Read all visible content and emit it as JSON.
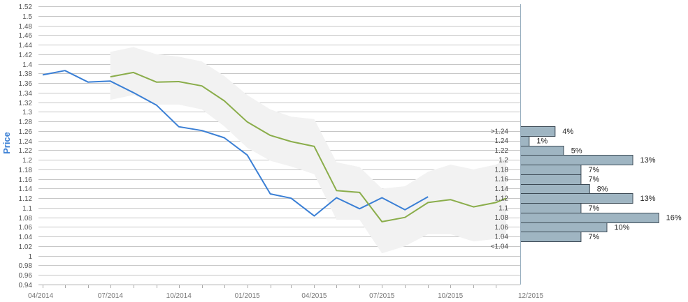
{
  "chart_data": {
    "type": "line",
    "title": "",
    "ylabel": "Price",
    "ylim": [
      0.94,
      1.52
    ],
    "yticks": [
      "1.52",
      "1.5",
      "1.48",
      "1.46",
      "1.44",
      "1.42",
      "1.4",
      "1.38",
      "1.36",
      "1.34",
      "1.32",
      "1.3",
      "1.28",
      "1.26",
      "1.24",
      "1.22",
      "1.2",
      "1.18",
      "1.16",
      "1.14",
      "1.12",
      "1.1",
      "1.08",
      "1.06",
      "1.04",
      "1.02",
      "1",
      "0.98",
      "0.96",
      "0.94"
    ],
    "xticks": [
      "04/2014",
      "07/2014",
      "10/2014",
      "01/2015",
      "04/2015",
      "07/2015",
      "10/2015",
      "12/2015"
    ],
    "grid": true,
    "series": [
      {
        "color": "#3a7fd5",
        "points": [
          [
            "2014-04-01",
            1.377
          ],
          [
            "2014-05-01",
            1.386
          ],
          [
            "2014-06-01",
            1.362
          ],
          [
            "2014-07-01",
            1.364
          ],
          [
            "2014-08-01",
            1.34
          ],
          [
            "2014-09-01",
            1.314
          ],
          [
            "2014-10-01",
            1.269
          ],
          [
            "2014-11-01",
            1.261
          ],
          [
            "2014-12-01",
            1.246
          ],
          [
            "2015-01-01",
            1.21
          ],
          [
            "2015-02-01",
            1.129
          ],
          [
            "2015-03-01",
            1.12
          ],
          [
            "2015-04-01",
            1.083
          ],
          [
            "2015-05-01",
            1.121
          ],
          [
            "2015-06-01",
            1.098
          ],
          [
            "2015-07-01",
            1.121
          ],
          [
            "2015-08-01",
            1.096
          ],
          [
            "2015-09-01",
            1.123
          ]
        ]
      },
      {
        "color": "#8aad4a",
        "points": [
          [
            "2014-07-01",
            1.373
          ],
          [
            "2014-08-01",
            1.382
          ],
          [
            "2014-09-01",
            1.362
          ],
          [
            "2014-10-01",
            1.363
          ],
          [
            "2014-11-01",
            1.354
          ],
          [
            "2014-12-01",
            1.323
          ],
          [
            "2015-01-01",
            1.279
          ],
          [
            "2015-02-01",
            1.251
          ],
          [
            "2015-03-01",
            1.238
          ],
          [
            "2015-04-01",
            1.228
          ],
          [
            "2015-05-01",
            1.136
          ],
          [
            "2015-06-01",
            1.132
          ],
          [
            "2015-07-01",
            1.071
          ],
          [
            "2015-08-01",
            1.08
          ],
          [
            "2015-09-01",
            1.111
          ],
          [
            "2015-10-01",
            1.117
          ],
          [
            "2015-11-01",
            1.102
          ],
          [
            "2015-12-01",
            1.111
          ],
          [
            "2015-12-15",
            1.12
          ]
        ]
      }
    ],
    "band": {
      "color": "#f2f2f2",
      "upper": [
        [
          "2014-07-01",
          1.425
        ],
        [
          "2014-08-01",
          1.435
        ],
        [
          "2014-09-01",
          1.42
        ],
        [
          "2014-10-01",
          1.415
        ],
        [
          "2014-11-01",
          1.405
        ],
        [
          "2014-12-01",
          1.375
        ],
        [
          "2015-01-01",
          1.335
        ],
        [
          "2015-02-01",
          1.305
        ],
        [
          "2015-03-01",
          1.29
        ],
        [
          "2015-04-01",
          1.285
        ],
        [
          "2015-05-01",
          1.195
        ],
        [
          "2015-06-01",
          1.185
        ],
        [
          "2015-07-01",
          1.14
        ],
        [
          "2015-08-01",
          1.145
        ],
        [
          "2015-09-01",
          1.175
        ],
        [
          "2015-10-01",
          1.19
        ],
        [
          "2015-11-01",
          1.18
        ],
        [
          "2015-12-01",
          1.19
        ],
        [
          "2015-12-15",
          1.2
        ]
      ],
      "lower": [
        [
          "2014-07-01",
          1.325
        ],
        [
          "2014-08-01",
          1.335
        ],
        [
          "2014-09-01",
          1.315
        ],
        [
          "2014-10-01",
          1.315
        ],
        [
          "2014-11-01",
          1.305
        ],
        [
          "2014-12-01",
          1.27
        ],
        [
          "2015-01-01",
          1.225
        ],
        [
          "2015-02-01",
          1.198
        ],
        [
          "2015-03-01",
          1.186
        ],
        [
          "2015-04-01",
          1.17
        ],
        [
          "2015-05-01",
          1.075
        ],
        [
          "2015-06-01",
          1.075
        ],
        [
          "2015-07-01",
          1.005
        ],
        [
          "2015-08-01",
          1.02
        ],
        [
          "2015-09-01",
          1.045
        ],
        [
          "2015-10-01",
          1.045
        ],
        [
          "2015-11-01",
          1.03
        ],
        [
          "2015-12-01",
          1.035
        ],
        [
          "2015-12-15",
          1.045
        ]
      ]
    },
    "histogram": {
      "color": "#9fb5c2",
      "bins": [
        {
          "label": ">1.24",
          "price": 1.26,
          "percent": "4%",
          "value": 4
        },
        {
          "label": "1.24",
          "price": 1.24,
          "percent": "1%",
          "value": 1
        },
        {
          "label": "1.22",
          "price": 1.22,
          "percent": "5%",
          "value": 5
        },
        {
          "label": "1.2",
          "price": 1.2,
          "percent": "13%",
          "value": 13
        },
        {
          "label": "1.18",
          "price": 1.18,
          "percent": "7%",
          "value": 7
        },
        {
          "label": "1.16",
          "price": 1.16,
          "percent": "7%",
          "value": 7
        },
        {
          "label": "1.14",
          "price": 1.14,
          "percent": "8%",
          "value": 8
        },
        {
          "label": "1.12",
          "price": 1.12,
          "percent": "13%",
          "value": 13
        },
        {
          "label": "1.1",
          "price": 1.1,
          "percent": "7%",
          "value": 7
        },
        {
          "label": "1.08",
          "price": 1.08,
          "percent": "16%",
          "value": 16
        },
        {
          "label": "1.06",
          "price": 1.06,
          "percent": "10%",
          "value": 10
        },
        {
          "label": "1.04",
          "price": 1.04,
          "percent": "7%",
          "value": 7
        },
        {
          "label": "<1.04",
          "price": 1.02,
          "percent": null,
          "value": null
        }
      ]
    }
  }
}
